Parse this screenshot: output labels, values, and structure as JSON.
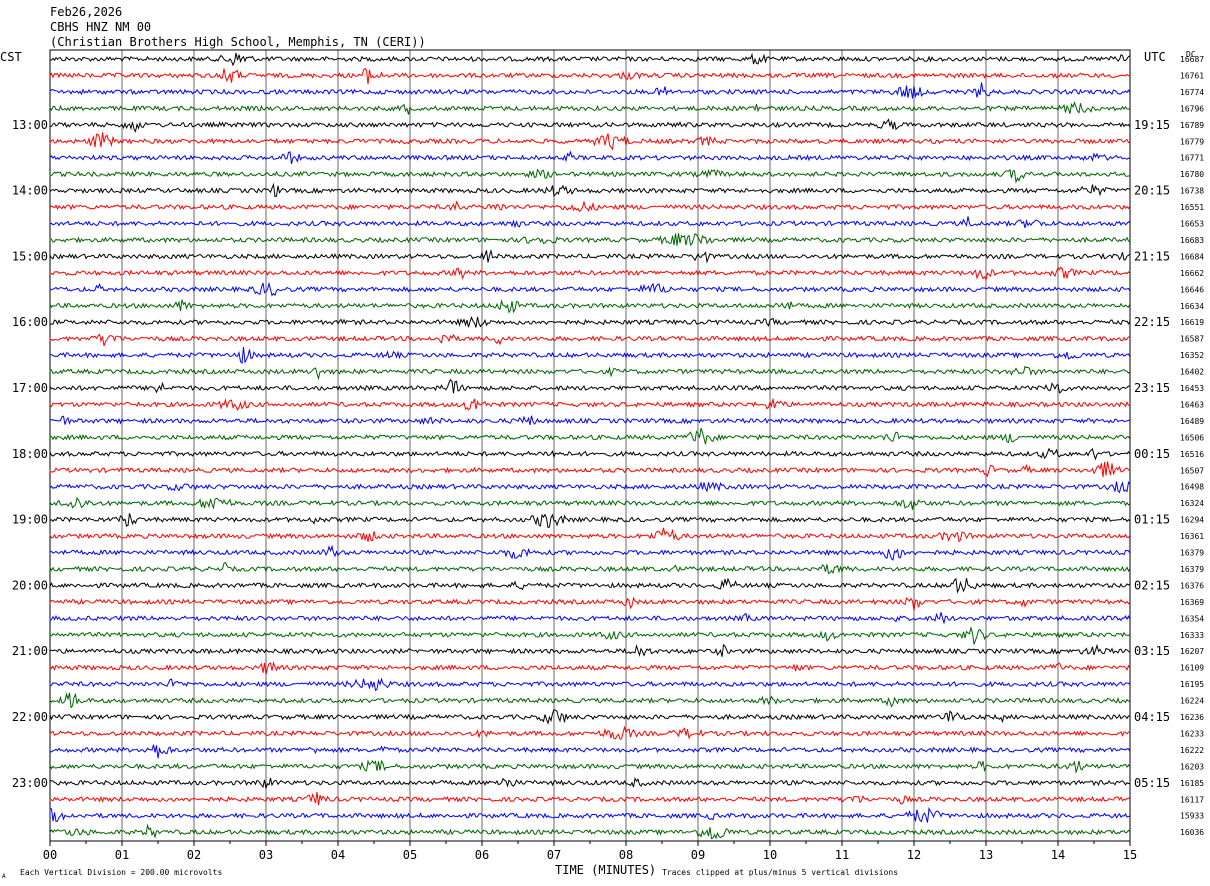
{
  "chart_data": {
    "type": "line",
    "title_lines": [
      "Feb26,2026",
      "CBHS HNZ NM 00",
      "(Christian Brothers High School, Memphis, TN (CERI))"
    ],
    "left_tz_label": "CST",
    "right_tz_label": "UTC",
    "dc_label": "DC",
    "xlabel": "TIME (MINUTES)",
    "x_ticks": [
      "00",
      "01",
      "02",
      "03",
      "04",
      "05",
      "06",
      "07",
      "08",
      "09",
      "10",
      "11",
      "12",
      "13",
      "14",
      "15"
    ],
    "xlim": [
      0,
      15
    ],
    "footer_left": "Each Vertical Division =  200.00 microvolts",
    "footer_right": "Traces clipped at plus/minus 5 vertical divisions",
    "footer_mark": "A",
    "left_hour_labels": [
      "13:00",
      "14:00",
      "15:00",
      "16:00",
      "17:00",
      "18:00",
      "19:00",
      "20:00",
      "21:00",
      "22:00",
      "23:00"
    ],
    "right_hour_labels": [
      "19:15",
      "20:15",
      "21:15",
      "22:15",
      "23:15",
      "00:15",
      "01:15",
      "02:15",
      "03:15",
      "04:15",
      "05:15"
    ],
    "trace_colors": [
      "#000000",
      "#ff0000",
      "#0000ff",
      "#006400"
    ],
    "grid": true,
    "traces_dc": [
      16687,
      16761,
      16774,
      16796,
      16789,
      16779,
      16771,
      16780,
      16738,
      16551,
      16653,
      16683,
      16684,
      16662,
      16646,
      16634,
      16619,
      16587,
      16352,
      16402,
      16453,
      16463,
      16489,
      16506,
      16516,
      16507,
      16498,
      16324,
      16294,
      16361,
      16379,
      16379,
      16376,
      16369,
      16354,
      16333,
      16207,
      16109,
      16195,
      16224,
      16236,
      16233,
      16222,
      16203,
      16185,
      16117,
      15933,
      16036
    ]
  }
}
